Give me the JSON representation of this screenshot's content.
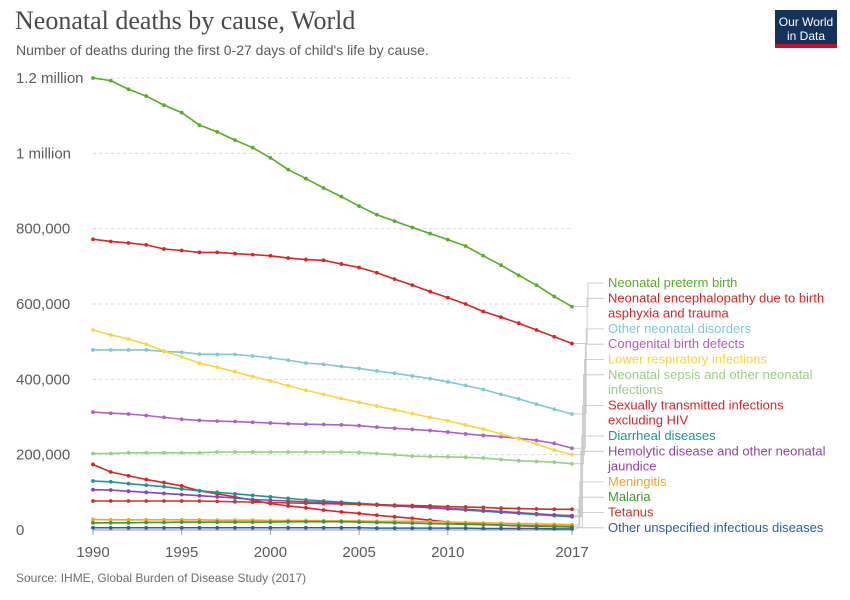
{
  "header": {
    "title": "Neonatal deaths by cause, World",
    "subtitle": "Number of deaths during the first 0-27 days of child's life by cause."
  },
  "logo": {
    "line1": "Our World",
    "line2": "in Data",
    "bg_color": "#15325b",
    "accent_color": "#c8102e"
  },
  "footer": {
    "source": "Source: IHME, Global Burden of Disease Study (2017)"
  },
  "chart_data": {
    "type": "line",
    "title": "Neonatal deaths by cause, World",
    "x": [
      1990,
      1991,
      1992,
      1993,
      1994,
      1995,
      1996,
      1997,
      1998,
      1999,
      2000,
      2001,
      2002,
      2003,
      2004,
      2005,
      2006,
      2007,
      2008,
      2009,
      2010,
      2011,
      2012,
      2013,
      2014,
      2015,
      2016,
      2017
    ],
    "xlim": [
      1990,
      2017
    ],
    "ylim": [
      0,
      1200000
    ],
    "x_ticks": [
      {
        "value": 1990,
        "label": "1990"
      },
      {
        "value": 1995,
        "label": "1995"
      },
      {
        "value": 2000,
        "label": "2000"
      },
      {
        "value": 2005,
        "label": "2005"
      },
      {
        "value": 2010,
        "label": "2010"
      },
      {
        "value": 2017,
        "label": "2017"
      }
    ],
    "y_ticks": [
      {
        "value": 0,
        "label": "0"
      },
      {
        "value": 200000,
        "label": "200,000"
      },
      {
        "value": 400000,
        "label": "400,000"
      },
      {
        "value": 600000,
        "label": "600,000"
      },
      {
        "value": 800000,
        "label": "800,000"
      },
      {
        "value": 1000000,
        "label": "1 million"
      },
      {
        "value": 1200000,
        "label": "1.2 million"
      }
    ],
    "grid": "horizontal dashed",
    "legend_position": "right, labels at line ends",
    "series": [
      {
        "name": "Neonatal preterm birth",
        "color": "#58ac28",
        "values": [
          1200000,
          1193000,
          1170000,
          1152000,
          1128000,
          1108000,
          1075000,
          1057000,
          1035000,
          1015000,
          988000,
          957000,
          933000,
          908000,
          885000,
          860000,
          837000,
          820000,
          803000,
          787000,
          771000,
          754000,
          728000,
          703000,
          676000,
          650000,
          620000,
          593000
        ]
      },
      {
        "name": "Neonatal encephalopathy due to birth asphyxia and trauma",
        "color": "#d62728",
        "values": [
          772000,
          766000,
          762000,
          757000,
          746000,
          742000,
          737000,
          737000,
          734000,
          731000,
          728000,
          722000,
          718000,
          716000,
          706000,
          697000,
          683000,
          666000,
          650000,
          633000,
          617000,
          600000,
          580000,
          565000,
          549000,
          531000,
          513000,
          495000
        ]
      },
      {
        "name": "Other neonatal disorders",
        "color": "#7fc8d4",
        "values": [
          478000,
          478000,
          478000,
          478000,
          474000,
          472000,
          467000,
          466000,
          466000,
          462000,
          457000,
          451000,
          443000,
          440000,
          434000,
          429000,
          422000,
          416000,
          409000,
          402000,
          393000,
          384000,
          373000,
          360000,
          348000,
          334000,
          321000,
          308000
        ]
      },
      {
        "name": "Congenital birth defects",
        "color": "#b05fc4",
        "values": [
          313000,
          310000,
          308000,
          304000,
          299000,
          294000,
          291000,
          289000,
          288000,
          286000,
          284000,
          282000,
          281000,
          280000,
          279000,
          277000,
          273000,
          270000,
          267000,
          264000,
          260000,
          255000,
          251000,
          248000,
          243000,
          238000,
          230000,
          217000
        ]
      },
      {
        "name": "Lower respiratory infections",
        "color": "#f7d640",
        "values": [
          531000,
          518000,
          507000,
          493000,
          475000,
          460000,
          443000,
          432000,
          420000,
          407000,
          396000,
          383000,
          371000,
          360000,
          349000,
          339000,
          329000,
          319000,
          309000,
          299000,
          290000,
          279000,
          268000,
          255000,
          242000,
          228000,
          212000,
          200000
        ]
      },
      {
        "name": "Neonatal sepsis and other neonatal infections",
        "color": "#9bce88",
        "values": [
          203000,
          203000,
          205000,
          205000,
          205000,
          205000,
          205000,
          207000,
          207000,
          207000,
          207000,
          207000,
          207000,
          207000,
          207000,
          206000,
          203000,
          200000,
          196000,
          195000,
          194000,
          193000,
          191000,
          187000,
          184000,
          182000,
          180000,
          176000
        ]
      },
      {
        "name": "Sexually transmitted infections excluding HIV",
        "color": "#d62728",
        "values": [
          174000,
          154000,
          144000,
          134000,
          126000,
          117000,
          104000,
          96000,
          88000,
          79000,
          70000,
          64000,
          59000,
          53000,
          48000,
          44000,
          39000,
          35000,
          31000,
          26000,
          21000,
          18000,
          15000,
          13000,
          11000,
          10000,
          9000,
          8000
        ]
      },
      {
        "name": "Diarrheal diseases",
        "color": "#1f9591",
        "values": [
          130000,
          128000,
          123000,
          119000,
          115000,
          109000,
          104000,
          100000,
          96000,
          92000,
          88000,
          84000,
          80000,
          77000,
          74000,
          71000,
          68000,
          65000,
          62000,
          59000,
          56000,
          53000,
          50000,
          47000,
          44000,
          41000,
          38000,
          35000
        ]
      },
      {
        "name": "Hemolytic disease and other neonatal jaundice",
        "color": "#8e44ad",
        "values": [
          107000,
          106000,
          103000,
          100000,
          97000,
          94000,
          91000,
          88000,
          85000,
          81000,
          79000,
          77000,
          75000,
          73000,
          71000,
          69000,
          66000,
          64000,
          62000,
          60000,
          57000,
          55000,
          52000,
          49000,
          46000,
          43000,
          40000,
          38000
        ]
      },
      {
        "name": "Meningitis",
        "color": "#f5a623",
        "values": [
          28000,
          27000,
          27000,
          27000,
          27000,
          27000,
          27000,
          26000,
          26000,
          26000,
          25000,
          25000,
          25000,
          24000,
          24000,
          24000,
          23000,
          23000,
          23000,
          22000,
          21000,
          20000,
          19000,
          18000,
          17000,
          16000,
          15000,
          14000
        ]
      },
      {
        "name": "Malaria",
        "color": "#3d9932",
        "values": [
          19000,
          19000,
          19000,
          20000,
          20000,
          21000,
          21000,
          21000,
          21000,
          21000,
          21000,
          22000,
          22000,
          22000,
          22000,
          21000,
          20000,
          19000,
          18000,
          17000,
          16000,
          15000,
          14000,
          13000,
          12000,
          11000,
          10000,
          9000
        ]
      },
      {
        "name": "Tetanus",
        "color": "#c0392b",
        "values": [
          77000,
          77000,
          77000,
          77000,
          77000,
          77000,
          77000,
          76000,
          75000,
          74000,
          73000,
          72000,
          71000,
          70000,
          69000,
          68000,
          67000,
          66000,
          65000,
          64000,
          62000,
          61000,
          60000,
          58000,
          57000,
          56000,
          55000,
          55000
        ]
      },
      {
        "name": "Other unspecified infectious diseases",
        "color": "#2c5ea8",
        "values": [
          6000,
          6000,
          6000,
          6000,
          6000,
          6000,
          6000,
          6000,
          6000,
          6000,
          6000,
          6000,
          6000,
          6000,
          6000,
          6000,
          5000,
          5000,
          5000,
          5000,
          5000,
          5000,
          4000,
          4000,
          4000,
          4000,
          3000,
          3000
        ]
      }
    ]
  }
}
